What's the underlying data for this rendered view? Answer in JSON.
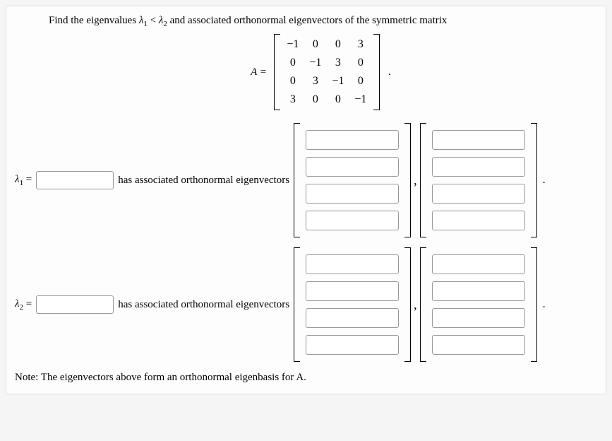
{
  "prompt": {
    "pre": "Find the eigenvalues ",
    "lambda1": "λ",
    "sub1": "1",
    "lt": " < ",
    "lambda2": "λ",
    "sub2": "2",
    "post": " and associated orthonormal eigenvectors of the symmetric matrix"
  },
  "matrix": {
    "label": "A =",
    "rows": [
      [
        "−1",
        "0",
        "0",
        "3"
      ],
      [
        "0",
        "−1",
        "3",
        "0"
      ],
      [
        "0",
        "3",
        "−1",
        "0"
      ],
      [
        "3",
        "0",
        "0",
        "−1"
      ]
    ],
    "period": "."
  },
  "row1": {
    "lambda": "λ",
    "sub": "1",
    "eq": " =",
    "text": "has associated orthonormal eigenvectors",
    "comma": ",",
    "period": "."
  },
  "row2": {
    "lambda": "λ",
    "sub": "2",
    "eq": " =",
    "text": "has associated orthonormal eigenvectors",
    "comma": ",",
    "period": "."
  },
  "note": "Note: The eigenvectors above form an orthonormal eigenbasis for A."
}
